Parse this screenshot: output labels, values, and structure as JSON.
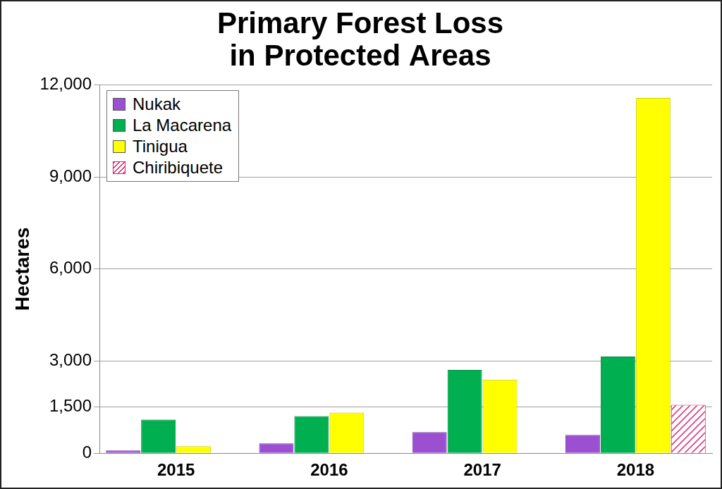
{
  "chart_data": {
    "type": "bar",
    "title": "Primary Forest Loss\nin Protected Areas",
    "y_label": "Hectares",
    "categories": [
      "2015",
      "2016",
      "2017",
      "2018"
    ],
    "series": [
      {
        "name": "Nukak",
        "color": "#9b4fd1",
        "values": [
          90,
          320,
          685,
          595
        ]
      },
      {
        "name": "La Macarena",
        "color": "#00b050",
        "values": [
          1095,
          1210,
          2715,
          3150
        ]
      },
      {
        "name": "Tinigua",
        "color": "#ffff00",
        "values": [
          230,
          1325,
          2395,
          11575
        ]
      },
      {
        "name": "Chiribiquete",
        "color": "#d6246e",
        "line_style": "hatched",
        "values": [
          null,
          null,
          null,
          1575
        ]
      }
    ],
    "ylim": [
      0,
      12000
    ],
    "yticks": [
      0,
      {
        "value": 1500,
        "label": "1,500"
      },
      {
        "value": 3000,
        "label": "3,000"
      },
      {
        "value": 6000,
        "label": "6,000"
      },
      {
        "value": 9000,
        "label": "9,000"
      },
      {
        "value": 12000,
        "label": "12,000"
      }
    ],
    "grid": true,
    "legend": "top-left"
  }
}
